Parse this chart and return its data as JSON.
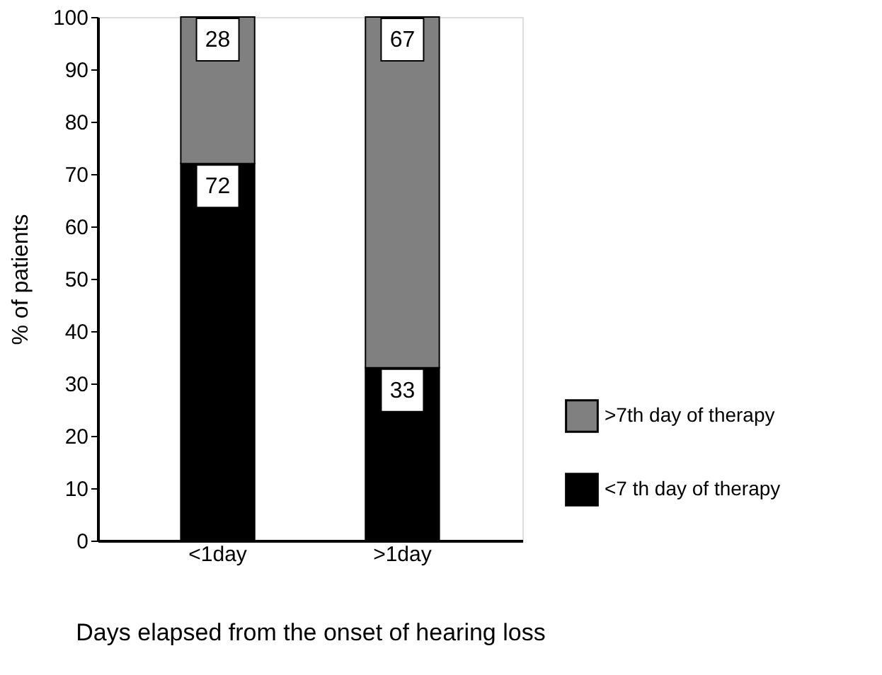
{
  "chart_data": {
    "type": "bar",
    "stacked": true,
    "xlabel": "Days elapsed from the onset of hearing loss",
    "ylabel": "% of patients",
    "categories": [
      "<1day",
      ">1day"
    ],
    "series": [
      {
        "name": "<7 th day of therapy",
        "color": "#000000",
        "values": [
          72,
          33
        ]
      },
      {
        "name": ">7th day of therapy",
        "color": "#808080",
        "values": [
          28,
          67
        ]
      }
    ],
    "ylim": [
      0,
      100
    ],
    "yticks": [
      0,
      10,
      20,
      30,
      40,
      50,
      60,
      70,
      80,
      90,
      100
    ],
    "grid": false,
    "legend": "bottom right",
    "data_labels": true
  }
}
